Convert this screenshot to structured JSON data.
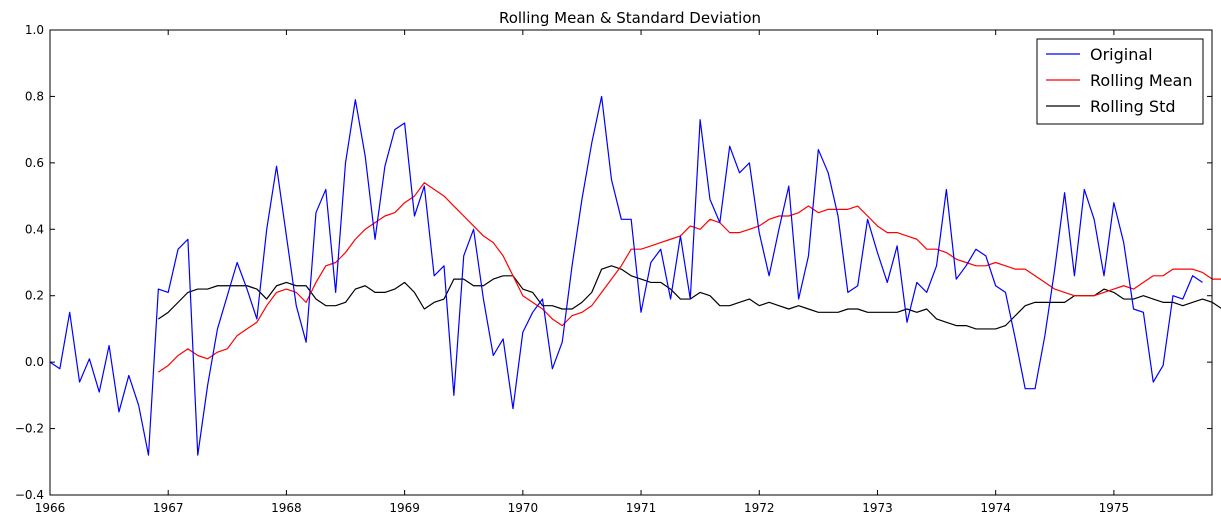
{
  "chart_data": {
    "type": "line",
    "title": "Rolling Mean & Standard Deviation",
    "xlabel": "",
    "ylabel": "",
    "xlim": [
      1966.0,
      1975.83
    ],
    "ylim": [
      -0.4,
      1.0
    ],
    "x_ticks": [
      1966,
      1967,
      1968,
      1969,
      1970,
      1971,
      1972,
      1973,
      1974,
      1975
    ],
    "x_tick_labels": [
      "1966",
      "1967",
      "1968",
      "1969",
      "1970",
      "1971",
      "1972",
      "1973",
      "1974",
      "1975"
    ],
    "y_ticks": [
      -0.4,
      -0.2,
      0.0,
      0.2,
      0.4,
      0.6,
      0.8,
      1.0
    ],
    "y_tick_labels": [
      "−0.4",
      "−0.2",
      "0.0",
      "0.2",
      "0.4",
      "0.6",
      "0.8",
      "1.0"
    ],
    "grid": false,
    "legend_position": "top-right",
    "x_start": 1966.0,
    "x_step": 0.08333,
    "series": [
      {
        "name": "Original",
        "color": "#0000ff",
        "start_index": 0,
        "values": [
          0.0,
          -0.02,
          0.15,
          -0.06,
          0.01,
          -0.09,
          0.05,
          -0.15,
          -0.04,
          -0.13,
          -0.28,
          0.22,
          0.21,
          0.34,
          0.37,
          -0.28,
          -0.07,
          0.1,
          0.2,
          0.3,
          0.22,
          0.13,
          0.4,
          0.59,
          0.38,
          0.17,
          0.06,
          0.45,
          0.52,
          0.21,
          0.6,
          0.79,
          0.62,
          0.37,
          0.59,
          0.7,
          0.72,
          0.44,
          0.53,
          0.26,
          0.29,
          -0.1,
          0.32,
          0.4,
          0.19,
          0.02,
          0.07,
          -0.14,
          0.09,
          0.15,
          0.19,
          -0.02,
          0.06,
          0.29,
          0.49,
          0.66,
          0.8,
          0.55,
          0.43,
          0.43,
          0.15,
          0.3,
          0.34,
          0.19,
          0.38,
          0.19,
          0.73,
          0.49,
          0.42,
          0.65,
          0.57,
          0.6,
          0.39,
          0.26,
          0.4,
          0.53,
          0.19,
          0.32,
          0.64,
          0.57,
          0.44,
          0.21,
          0.23,
          0.43,
          0.33,
          0.24,
          0.35,
          0.12,
          0.24,
          0.21,
          0.29,
          0.52,
          0.25,
          0.29,
          0.34,
          0.32,
          0.23,
          0.21,
          0.07,
          -0.08,
          -0.08,
          0.08,
          0.28,
          0.51,
          0.26,
          0.52,
          0.43,
          0.26,
          0.48,
          0.36,
          0.16,
          0.15,
          -0.06,
          -0.01,
          0.2,
          0.19,
          0.26,
          0.24
        ]
      },
      {
        "name": "Rolling Mean",
        "color": "#ff0000",
        "start_index": 11,
        "values": [
          -0.03,
          -0.01,
          0.02,
          0.04,
          0.02,
          0.01,
          0.03,
          0.04,
          0.08,
          0.1,
          0.12,
          0.17,
          0.21,
          0.22,
          0.21,
          0.18,
          0.24,
          0.29,
          0.3,
          0.33,
          0.37,
          0.4,
          0.42,
          0.44,
          0.45,
          0.48,
          0.5,
          0.54,
          0.52,
          0.5,
          0.47,
          0.44,
          0.41,
          0.38,
          0.36,
          0.32,
          0.26,
          0.2,
          0.18,
          0.16,
          0.13,
          0.11,
          0.14,
          0.15,
          0.17,
          0.21,
          0.25,
          0.29,
          0.34,
          0.34,
          0.35,
          0.36,
          0.37,
          0.38,
          0.41,
          0.4,
          0.43,
          0.42,
          0.39,
          0.39,
          0.4,
          0.41,
          0.43,
          0.44,
          0.44,
          0.45,
          0.47,
          0.45,
          0.46,
          0.46,
          0.46,
          0.47,
          0.44,
          0.41,
          0.39,
          0.39,
          0.38,
          0.37,
          0.34,
          0.34,
          0.33,
          0.31,
          0.3,
          0.29,
          0.29,
          0.3,
          0.29,
          0.28,
          0.28,
          0.26,
          0.24,
          0.22,
          0.21,
          0.2,
          0.2,
          0.2,
          0.21,
          0.22,
          0.23,
          0.22,
          0.24,
          0.26,
          0.26,
          0.28,
          0.28,
          0.28,
          0.27,
          0.25,
          0.25,
          0.23
        ]
      },
      {
        "name": "Rolling Std",
        "color": "#000000",
        "start_index": 11,
        "values": [
          0.13,
          0.15,
          0.18,
          0.21,
          0.22,
          0.22,
          0.23,
          0.23,
          0.23,
          0.23,
          0.22,
          0.19,
          0.23,
          0.24,
          0.23,
          0.23,
          0.19,
          0.17,
          0.17,
          0.18,
          0.22,
          0.23,
          0.21,
          0.21,
          0.22,
          0.24,
          0.21,
          0.16,
          0.18,
          0.19,
          0.25,
          0.25,
          0.23,
          0.23,
          0.25,
          0.26,
          0.26,
          0.22,
          0.21,
          0.17,
          0.17,
          0.16,
          0.16,
          0.18,
          0.21,
          0.28,
          0.29,
          0.28,
          0.26,
          0.25,
          0.24,
          0.24,
          0.22,
          0.19,
          0.19,
          0.21,
          0.2,
          0.17,
          0.17,
          0.18,
          0.19,
          0.17,
          0.18,
          0.17,
          0.16,
          0.17,
          0.16,
          0.15,
          0.15,
          0.15,
          0.16,
          0.16,
          0.15,
          0.15,
          0.15,
          0.15,
          0.16,
          0.15,
          0.16,
          0.13,
          0.12,
          0.11,
          0.11,
          0.1,
          0.1,
          0.1,
          0.11,
          0.14,
          0.17,
          0.18,
          0.18,
          0.18,
          0.18,
          0.2,
          0.2,
          0.2,
          0.22,
          0.21,
          0.19,
          0.19,
          0.2,
          0.19,
          0.18,
          0.18,
          0.17,
          0.18,
          0.19,
          0.18,
          0.16,
          0.16
        ]
      }
    ]
  }
}
